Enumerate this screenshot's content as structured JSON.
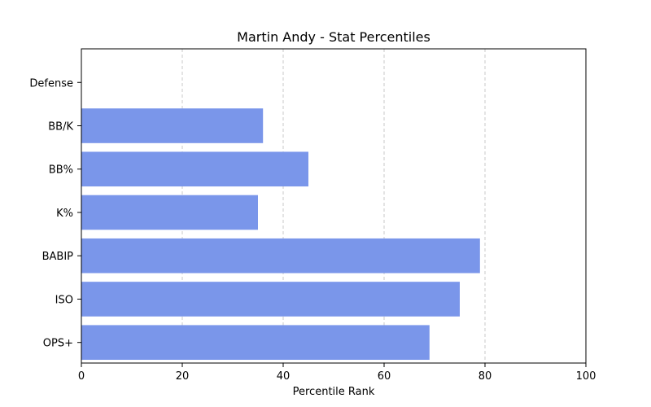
{
  "chart_data": {
    "type": "bar",
    "orientation": "horizontal",
    "title": "Martin Andy - Stat Percentiles",
    "xlabel": "Percentile Rank",
    "ylabel": "",
    "categories": [
      "OPS+",
      "ISO",
      "BABIP",
      "K%",
      "BB%",
      "BB/K",
      "Defense"
    ],
    "values": [
      69,
      75,
      79,
      35,
      45,
      36,
      0
    ],
    "xlim": [
      0,
      100
    ],
    "xticks": [
      0,
      20,
      40,
      60,
      80,
      100
    ],
    "grid": "x-dashed",
    "bar_color": "#7a96ea"
  }
}
